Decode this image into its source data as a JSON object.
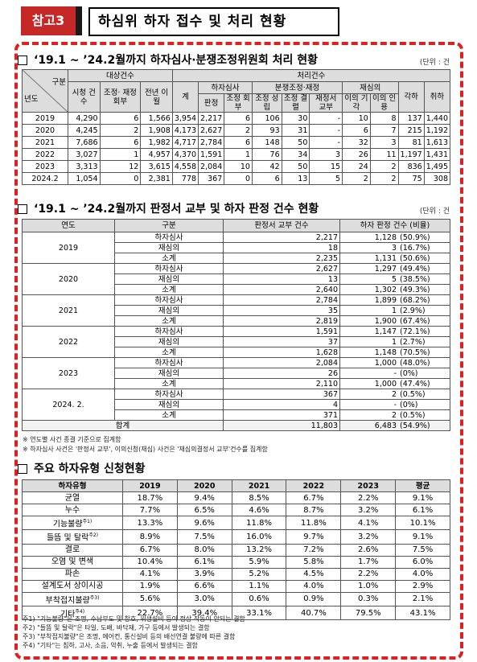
{
  "header": {
    "badge": "참고3",
    "title": "하심위 하자 접수 및 처리 현황"
  },
  "sec1": {
    "title": "‘19.1 ~ ’24.2월까지 하자심사·분쟁조정위원회 처리 현황",
    "unit": "(단위 : 건",
    "headers": {
      "gubun": "구분",
      "year": "년도",
      "target": "대상건수",
      "process": "처리건수",
      "sicheong": "시청 건수",
      "jojeong": "조정· 재정 회부",
      "jeonnyeon": "전년 이월",
      "total": "계",
      "hajasimsa": "하자심사",
      "bunjaeng": "분쟁조정·재정",
      "jaesim": "재심의",
      "panjeong": "판정",
      "johoe": "조정 회부",
      "josung": "조정 성립",
      "jogyeol": "조정 결렬",
      "jaejeong": "재정서 교부",
      "igi": "이의 기각",
      "iin": "이의 인용",
      "gakha": "각하",
      "chwiha": "취하"
    },
    "rows": [
      [
        "2019",
        "4,290",
        "6",
        "1,566",
        "3,954",
        "2,217",
        "6",
        "106",
        "30",
        "-",
        "10",
        "8",
        "137",
        "1,440"
      ],
      [
        "2020",
        "4,245",
        "2",
        "1,908",
        "4,173",
        "2,627",
        "2",
        "93",
        "31",
        "-",
        "6",
        "7",
        "215",
        "1,192"
      ],
      [
        "2021",
        "7,686",
        "6",
        "1,982",
        "4,717",
        "2,784",
        "6",
        "148",
        "50",
        "-",
        "32",
        "3",
        "81",
        "1,613"
      ],
      [
        "2022",
        "3,027",
        "1",
        "4,957",
        "4,370",
        "1,591",
        "1",
        "76",
        "34",
        "3",
        "26",
        "11",
        "1,197",
        "1,431"
      ],
      [
        "2023",
        "3,313",
        "12",
        "3,615",
        "4,558",
        "2,084",
        "10",
        "42",
        "50",
        "15",
        "24",
        "2",
        "836",
        "1,495"
      ],
      [
        "2024.2",
        "1,054",
        "0",
        "2,381",
        "778",
        "367",
        "0",
        "6",
        "13",
        "5",
        "2",
        "2",
        "75",
        "308"
      ]
    ]
  },
  "sec2": {
    "title": "‘19.1 ~ ’24.2월까지 판정서 교부 및 하자 판정 건수 현황",
    "unit": "(단위 : 건",
    "headers": {
      "year": "연도",
      "gubun": "구분",
      "issued": "판정서 교부 건수",
      "defect": "하자 판정 건수 (비율)"
    },
    "groups": [
      {
        "year": "2019",
        "rows": [
          [
            "하자심사",
            "2,217",
            "1,128",
            "(50.9%)"
          ],
          [
            "재심의",
            "18",
            "3",
            "(16.7%)"
          ],
          [
            "소계",
            "2,235",
            "1,131",
            "(50.6%)"
          ]
        ]
      },
      {
        "year": "2020",
        "rows": [
          [
            "하자심사",
            "2,627",
            "1,297",
            "(49.4%)"
          ],
          [
            "재심의",
            "13",
            "5",
            "(38.5%)"
          ],
          [
            "소계",
            "2,640",
            "1,302",
            "(49.3%)"
          ]
        ]
      },
      {
        "year": "2021",
        "rows": [
          [
            "하자심사",
            "2,784",
            "1,899",
            "(68.2%)"
          ],
          [
            "재심의",
            "35",
            "1",
            "(2.9%)"
          ],
          [
            "소계",
            "2,819",
            "1,900",
            "(67.4%)"
          ]
        ]
      },
      {
        "year": "2022",
        "rows": [
          [
            "하자심사",
            "1,591",
            "1,147",
            "(72.1%)"
          ],
          [
            "재심의",
            "37",
            "1",
            "(2.7%)"
          ],
          [
            "소계",
            "1,628",
            "1,148",
            "(70.5%)"
          ]
        ]
      },
      {
        "year": "2023",
        "rows": [
          [
            "하자심사",
            "2,084",
            "1,000",
            "(48.0%)"
          ],
          [
            "재심의",
            "26",
            "-",
            "(0%)"
          ],
          [
            "소계",
            "2,110",
            "1,000",
            "(47.4%)"
          ]
        ]
      },
      {
        "year": "2024. 2.",
        "rows": [
          [
            "하자심사",
            "367",
            "2",
            "(0.5%)"
          ],
          [
            "재심의",
            "4",
            "-",
            "(0%)"
          ],
          [
            "소계",
            "371",
            "2",
            "(0.5%)"
          ]
        ]
      }
    ],
    "total": {
      "label": "합계",
      "issued": "11,803",
      "defect": "6,483",
      "ratio": "(54.9%)"
    },
    "notes": [
      "※ 연도별 사건 종결 기준으로 집계함",
      "※ 하자심사 사건은 '판정서 교부', 이의신청(재심) 사건은 '재심의결정서 교부'건수를 집계함"
    ]
  },
  "sec3": {
    "title": "주요 하자유형 신청현황",
    "headers": [
      "하자유형",
      "2019",
      "2020",
      "2021",
      "2022",
      "2023",
      "평균"
    ],
    "rows": [
      {
        "label": "균열",
        "sup": "",
        "vals": [
          "18.7%",
          "9.4%",
          "8.5%",
          "6.7%",
          "2.2%",
          "9.1%"
        ]
      },
      {
        "label": "누수",
        "sup": "",
        "vals": [
          "7.7%",
          "6.5%",
          "4.6%",
          "8.7%",
          "3.2%",
          "6.1%"
        ]
      },
      {
        "label": "기능불량",
        "sup": "주1)",
        "vals": [
          "13.3%",
          "9.6%",
          "11.8%",
          "11.8%",
          "4.1%",
          "10.1%"
        ]
      },
      {
        "label": "들뜸 및 탈락",
        "sup": "주2)",
        "vals": [
          "8.9%",
          "7.5%",
          "16.0%",
          "9.7%",
          "3.2%",
          "9.1%"
        ]
      },
      {
        "label": "결로",
        "sup": "",
        "vals": [
          "6.7%",
          "8.0%",
          "13.2%",
          "7.2%",
          "2.6%",
          "7.5%"
        ]
      },
      {
        "label": "오염 및 변색",
        "sup": "",
        "vals": [
          "10.4%",
          "6.1%",
          "5.9%",
          "5.8%",
          "1.7%",
          "6.0%"
        ]
      },
      {
        "label": "파손",
        "sup": "",
        "vals": [
          "4.1%",
          "3.9%",
          "5.2%",
          "4.5%",
          "2.2%",
          "4.0%"
        ]
      },
      {
        "label": "설계도서 상이시공",
        "sup": "",
        "vals": [
          "1.9%",
          "6.6%",
          "1.1%",
          "4.0%",
          "1.0%",
          "2.9%"
        ]
      },
      {
        "label": "부착접지불량",
        "sup": "주3)",
        "vals": [
          "5.6%",
          "3.0%",
          "0.6%",
          "0.9%",
          "0.3%",
          "2.1%"
        ]
      },
      {
        "label": "기타",
        "sup": "주4)",
        "vals": [
          "22.7%",
          "39.4%",
          "33.1%",
          "40.7%",
          "79.5%",
          "43.1%"
        ]
      }
    ],
    "notes": [
      "주1) \"기능불량\"은 조명, 수납부도 및 창호, 위생설비 등이 정상 작동이 안되는 결함",
      "주2) \"들뜸 및 탈락\"은 타일, 도배, 바닥재, 가구 등에서 발생되는 결함",
      "주3) \"부착접지불량\"은 조명, 에어컨, 통신설비 등의 배선연결 불량에 따른 결함",
      "주4) \"기타\"는 침하, 고사, 소음, 악취, 누출 등에서 발생되는 결함"
    ]
  }
}
